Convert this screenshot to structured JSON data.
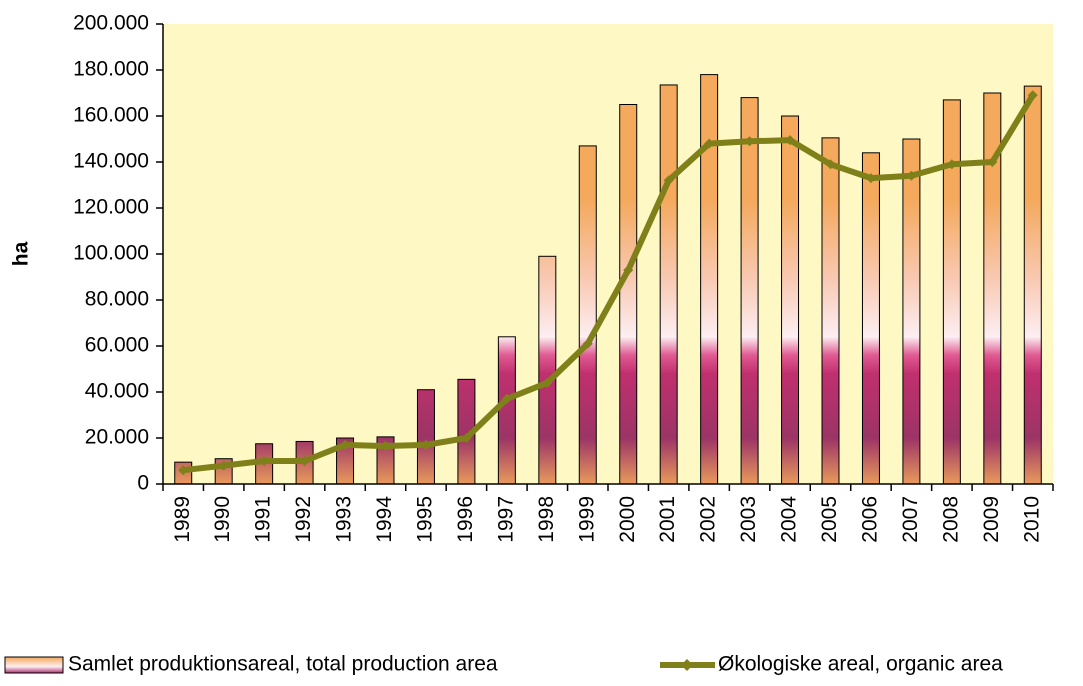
{
  "chart_data": {
    "type": "bar",
    "y_label": "ha",
    "categories": [
      "1989",
      "1990",
      "1991",
      "1992",
      "1993",
      "1994",
      "1995",
      "1996",
      "1997",
      "1998",
      "1999",
      "2000",
      "2001",
      "2002",
      "2003",
      "2004",
      "2005",
      "2006",
      "2007",
      "2008",
      "2009",
      "2010"
    ],
    "series": [
      {
        "name": "Samlet produktionsareal, total production area",
        "type": "bar",
        "color": "#f4a95c",
        "values": [
          9500,
          11000,
          17500,
          18500,
          20000,
          20500,
          41000,
          45500,
          64000,
          99000,
          147000,
          165000,
          173500,
          178000,
          168000,
          160000,
          150500,
          144000,
          150000,
          167000,
          170000,
          173000
        ]
      },
      {
        "name": "Økologiske areal, organic area",
        "type": "line",
        "color": "#7f8019",
        "values": [
          6000,
          8000,
          10000,
          10000,
          17000,
          16500,
          17000,
          20000,
          37000,
          44000,
          61000,
          93000,
          132000,
          148000,
          149000,
          149500,
          139000,
          133000,
          134000,
          139000,
          140000,
          169000
        ]
      }
    ],
    "ylim": [
      0,
      200000
    ],
    "yticks": [
      0,
      {
        "value": 20000,
        "label": "20.000"
      },
      {
        "value": 40000,
        "label": "40.000"
      },
      {
        "value": 60000,
        "label": "60.000"
      },
      {
        "value": 80000,
        "label": "80.000"
      },
      {
        "value": 100000,
        "label": "100.000"
      },
      {
        "value": 120000,
        "label": "120.000"
      },
      {
        "value": 140000,
        "label": "140.000"
      },
      {
        "value": 160000,
        "label": "160.000"
      },
      {
        "value": 180000,
        "label": "180.000"
      },
      {
        "value": 200000,
        "label": "200.000"
      }
    ],
    "grid": false,
    "legend": "bottom"
  }
}
